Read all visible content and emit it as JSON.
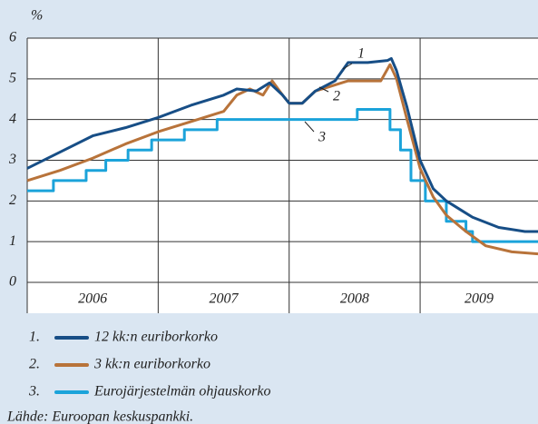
{
  "chart_data": {
    "type": "line",
    "ylabel": "%",
    "xlim": [
      2006,
      2009.9
    ],
    "xticks": [
      2007,
      2008,
      2009
    ],
    "year_labels": [
      "2006",
      "2007",
      "2008",
      "2009"
    ],
    "ylim": [
      0,
      6
    ],
    "yticks": [
      0,
      1,
      2,
      3,
      4,
      5,
      6
    ],
    "grid": true,
    "annotations": [
      "1",
      "2",
      "3"
    ],
    "series": [
      {
        "number": "1.",
        "name": "12 kk:n euriborkorko",
        "color": "#174e86",
        "x": [
          2006.0,
          2006.25,
          2006.5,
          2006.75,
          2007.0,
          2007.25,
          2007.5,
          2007.6,
          2007.75,
          2007.85,
          2007.95,
          2008.0,
          2008.1,
          2008.2,
          2008.35,
          2008.45,
          2008.6,
          2008.75,
          2008.78,
          2008.82,
          2008.9,
          2009.0,
          2009.1,
          2009.2,
          2009.4,
          2009.6,
          2009.8,
          2009.9
        ],
        "values": [
          2.8,
          3.2,
          3.6,
          3.8,
          4.05,
          4.35,
          4.6,
          4.75,
          4.7,
          4.9,
          4.6,
          4.4,
          4.4,
          4.7,
          4.95,
          5.4,
          5.4,
          5.45,
          5.5,
          5.2,
          4.3,
          3.0,
          2.3,
          2.0,
          1.6,
          1.35,
          1.25,
          1.25
        ]
      },
      {
        "number": "2.",
        "name": "3 kk:n euriborkorko",
        "color": "#b8733a",
        "x": [
          2006.0,
          2006.25,
          2006.5,
          2006.75,
          2007.0,
          2007.25,
          2007.5,
          2007.6,
          2007.7,
          2007.8,
          2007.87,
          2007.95,
          2008.0,
          2008.1,
          2008.2,
          2008.35,
          2008.45,
          2008.7,
          2008.77,
          2008.82,
          2008.9,
          2009.0,
          2009.1,
          2009.2,
          2009.35,
          2009.5,
          2009.7,
          2009.9
        ],
        "values": [
          2.5,
          2.75,
          3.05,
          3.4,
          3.7,
          3.95,
          4.2,
          4.6,
          4.75,
          4.6,
          4.95,
          4.6,
          4.4,
          4.4,
          4.7,
          4.85,
          4.95,
          4.95,
          5.35,
          5.0,
          4.0,
          2.8,
          2.1,
          1.65,
          1.25,
          0.9,
          0.75,
          0.7
        ]
      },
      {
        "number": "3.",
        "name": "Eurojärjestelmän ohjauskorko",
        "color": "#1ba3da",
        "x": [
          2006.0,
          2006.2,
          2006.2,
          2006.45,
          2006.45,
          2006.6,
          2006.6,
          2006.77,
          2006.77,
          2006.95,
          2006.95,
          2007.2,
          2007.2,
          2007.45,
          2007.45,
          2008.52,
          2008.52,
          2008.77,
          2008.77,
          2008.85,
          2008.85,
          2008.93,
          2008.93,
          2009.04,
          2009.04,
          2009.2,
          2009.2,
          2009.35,
          2009.35,
          2009.4,
          2009.4,
          2009.9
        ],
        "values": [
          2.25,
          2.25,
          2.5,
          2.5,
          2.75,
          2.75,
          3.0,
          3.0,
          3.25,
          3.25,
          3.5,
          3.5,
          3.75,
          3.75,
          4.0,
          4.0,
          4.25,
          4.25,
          3.75,
          3.75,
          3.25,
          3.25,
          2.5,
          2.5,
          2.0,
          2.0,
          1.5,
          1.5,
          1.25,
          1.25,
          1.0,
          1.0
        ]
      }
    ],
    "source": "Lähde: Euroopan keskuspankki."
  }
}
